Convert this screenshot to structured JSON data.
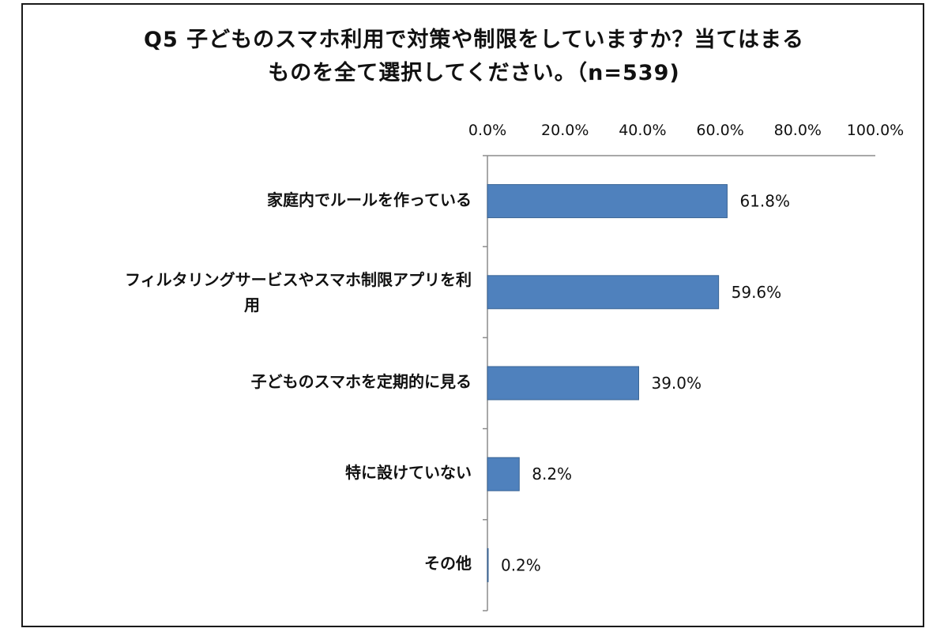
{
  "chart_data": {
    "type": "bar",
    "orientation": "horizontal",
    "title_lines": [
      "Q5 子どものスマホ利用で対策や制限をしていますか？当てはまる",
      "ものを全て選択してください。（n=539)"
    ],
    "categories": [
      "家庭内でルールを作っている",
      "フィルタリングサービスやスマホ制限アプリを利用",
      "子どものスマホを定期的に見る",
      "特に設けていない",
      "その他"
    ],
    "category_label_lines": [
      [
        "家庭内でルールを作っている"
      ],
      [
        "フィルタリングサービスやスマホ制限アプリを利",
        "用"
      ],
      [
        "子どものスマホを定期的に見る"
      ],
      [
        "特に設けていない"
      ],
      [
        "その他"
      ]
    ],
    "values": [
      61.8,
      59.6,
      39.0,
      8.2,
      0.2
    ],
    "value_labels": [
      "61.8%",
      "59.6%",
      "39.0%",
      "8.2%",
      "0.2%"
    ],
    "xlim": [
      0,
      100
    ],
    "x_ticks": [
      0,
      20,
      40,
      60,
      80,
      100
    ],
    "x_tick_labels": [
      "0.0%",
      "20.0%",
      "40.0%",
      "60.0%",
      "80.0%",
      "100.0%"
    ],
    "x_axis_position": "top",
    "grid": false,
    "legend": "none",
    "bar_color": "#4f81bd",
    "bar_border_color": "#3a6494"
  }
}
